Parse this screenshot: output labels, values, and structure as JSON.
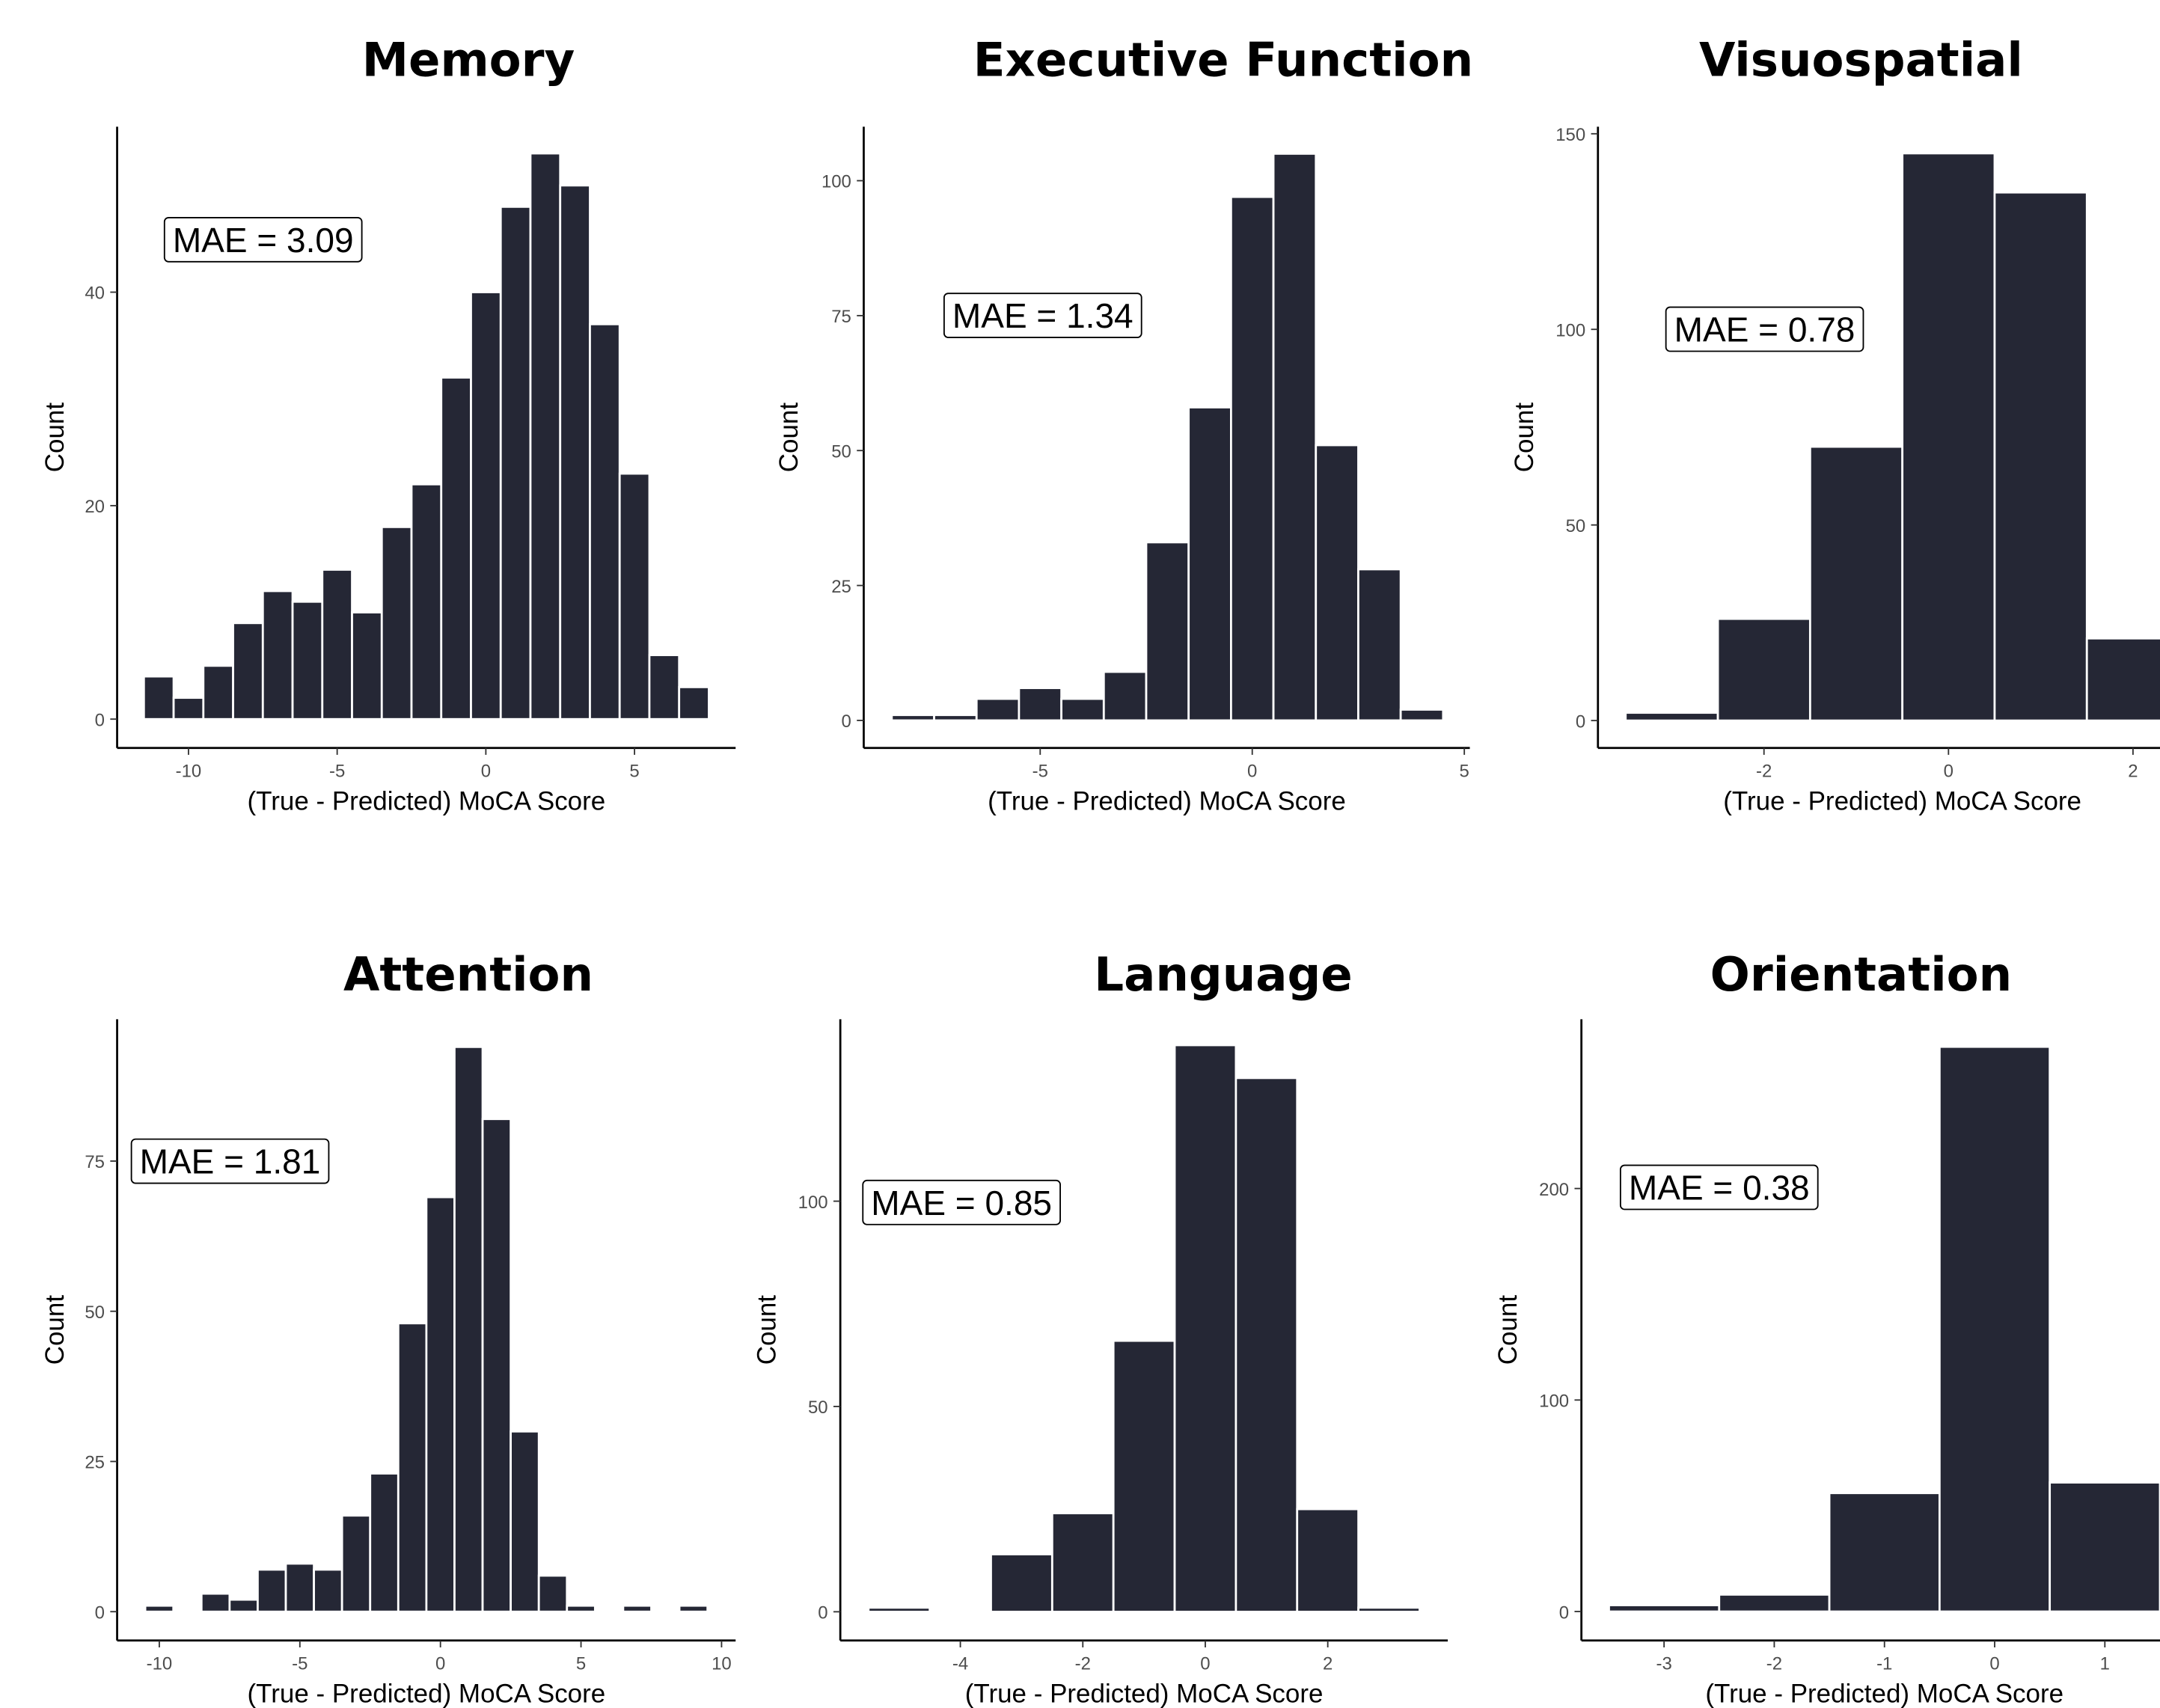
{
  "chart_data": [
    {
      "type": "histogram",
      "title": "Memory",
      "xlabel": "(True - Predicted) MoCA Score",
      "ylabel": "Count",
      "annotation": "MAE = 3.09",
      "color": "#252735",
      "bins": [
        -11.5,
        -10.5,
        -9.5,
        -8.5,
        -7.5,
        -6.5,
        -5.5,
        -4.5,
        -3.5,
        -2.5,
        -1.5,
        -0.5,
        0.5,
        1.5,
        2.5,
        3.5,
        4.5,
        5.5,
        6.5,
        7.5
      ],
      "values": [
        4,
        2,
        5,
        9,
        12,
        11,
        14,
        10,
        18,
        22,
        32,
        40,
        48,
        53,
        50,
        37,
        23,
        6,
        3
      ],
      "xlim": [
        -12.4,
        8.4
      ],
      "ylim": [
        -2.7,
        55.5
      ],
      "xticks": [
        -10,
        -5,
        0,
        5
      ],
      "yticks": [
        0,
        20,
        40
      ]
    },
    {
      "type": "histogram",
      "title": "Executive Function",
      "xlabel": "(True - Predicted) MoCA Score",
      "ylabel": "Count",
      "annotation": "MAE = 1.34",
      "color": "#252735",
      "bins": [
        -8.5,
        -7.5,
        -6.5,
        -5.5,
        -4.5,
        -3.5,
        -2.5,
        -1.5,
        -0.5,
        0.5,
        1.5,
        2.5,
        3.5,
        4.5
      ],
      "values": [
        1,
        1,
        4,
        6,
        4,
        9,
        33,
        58,
        97,
        105,
        51,
        28,
        2
      ],
      "xlim": [
        -9.16,
        5.13
      ],
      "ylim": [
        -5.1,
        110
      ],
      "xticks": [
        -5,
        0,
        5
      ],
      "yticks": [
        0,
        25,
        50,
        75,
        100
      ]
    },
    {
      "type": "histogram",
      "title": "Visuospatial",
      "xlabel": "(True - Predicted) MoCA Score",
      "ylabel": "Count",
      "annotation": "MAE = 0.78",
      "color": "#252735",
      "bins": [
        -3.5,
        -2.5,
        -1.5,
        -0.5,
        0.5,
        1.5,
        2.5
      ],
      "values": [
        2,
        26,
        70,
        145,
        135,
        21
      ],
      "xlim": [
        -3.8,
        2.8
      ],
      "ylim": [
        -7,
        151.8
      ],
      "xticks": [
        -2,
        0,
        2
      ],
      "yticks": [
        0,
        50,
        100,
        150
      ]
    },
    {
      "type": "histogram",
      "title": "Attention",
      "xlabel": "(True - Predicted) MoCA Score",
      "ylabel": "Count",
      "annotation": "MAE = 1.81",
      "color": "#252735",
      "bins": [
        -10.5,
        -9.5,
        -8.5,
        -7.5,
        -6.5,
        -5.5,
        -4.5,
        -3.5,
        -2.5,
        -1.5,
        -0.5,
        0.5,
        1.5,
        2.5,
        3.5,
        4.5,
        5.5,
        6.5,
        7.5,
        8.5,
        9.5
      ],
      "values": [
        1,
        0,
        3,
        2,
        7,
        8,
        7,
        16,
        23,
        48,
        69,
        94,
        82,
        30,
        6,
        1,
        0,
        1,
        0,
        1
      ],
      "xlim": [
        -11.5,
        10.5
      ],
      "ylim": [
        -4.8,
        98.6
      ],
      "xticks": [
        -10,
        -5,
        0,
        5,
        10
      ],
      "yticks": [
        0,
        25,
        50,
        75
      ]
    },
    {
      "type": "histogram",
      "title": "Language",
      "xlabel": "(True - Predicted) MoCA Score",
      "ylabel": "Count",
      "annotation": "MAE = 0.85",
      "color": "#252735",
      "bins": [
        -5.5,
        -4.5,
        -3.5,
        -2.5,
        -1.5,
        -0.5,
        0.5,
        1.5,
        2.5,
        3.5
      ],
      "values": [
        1,
        0,
        14,
        24,
        66,
        138,
        130,
        25,
        1
      ],
      "xlim": [
        -5.96,
        3.96
      ],
      "ylim": [
        -7,
        144.3
      ],
      "xticks": [
        -4,
        -2,
        0,
        2
      ],
      "yticks": [
        0,
        50,
        100
      ]
    },
    {
      "type": "histogram",
      "title": "Orientation",
      "xlabel": "(True - Predicted) MoCA Score",
      "ylabel": "Count",
      "annotation": "MAE = 0.38",
      "color": "#252735",
      "bins": [
        -3.5,
        -2.5,
        -1.5,
        -0.5,
        0.5,
        1.5
      ],
      "values": [
        3,
        8,
        56,
        267,
        61
      ],
      "xlim": [
        -3.75,
        1.75
      ],
      "ylim": [
        -13.7,
        280
      ],
      "xticks": [
        -3,
        -2,
        -1,
        0,
        1
      ],
      "yticks": [
        0,
        100,
        200
      ]
    }
  ]
}
